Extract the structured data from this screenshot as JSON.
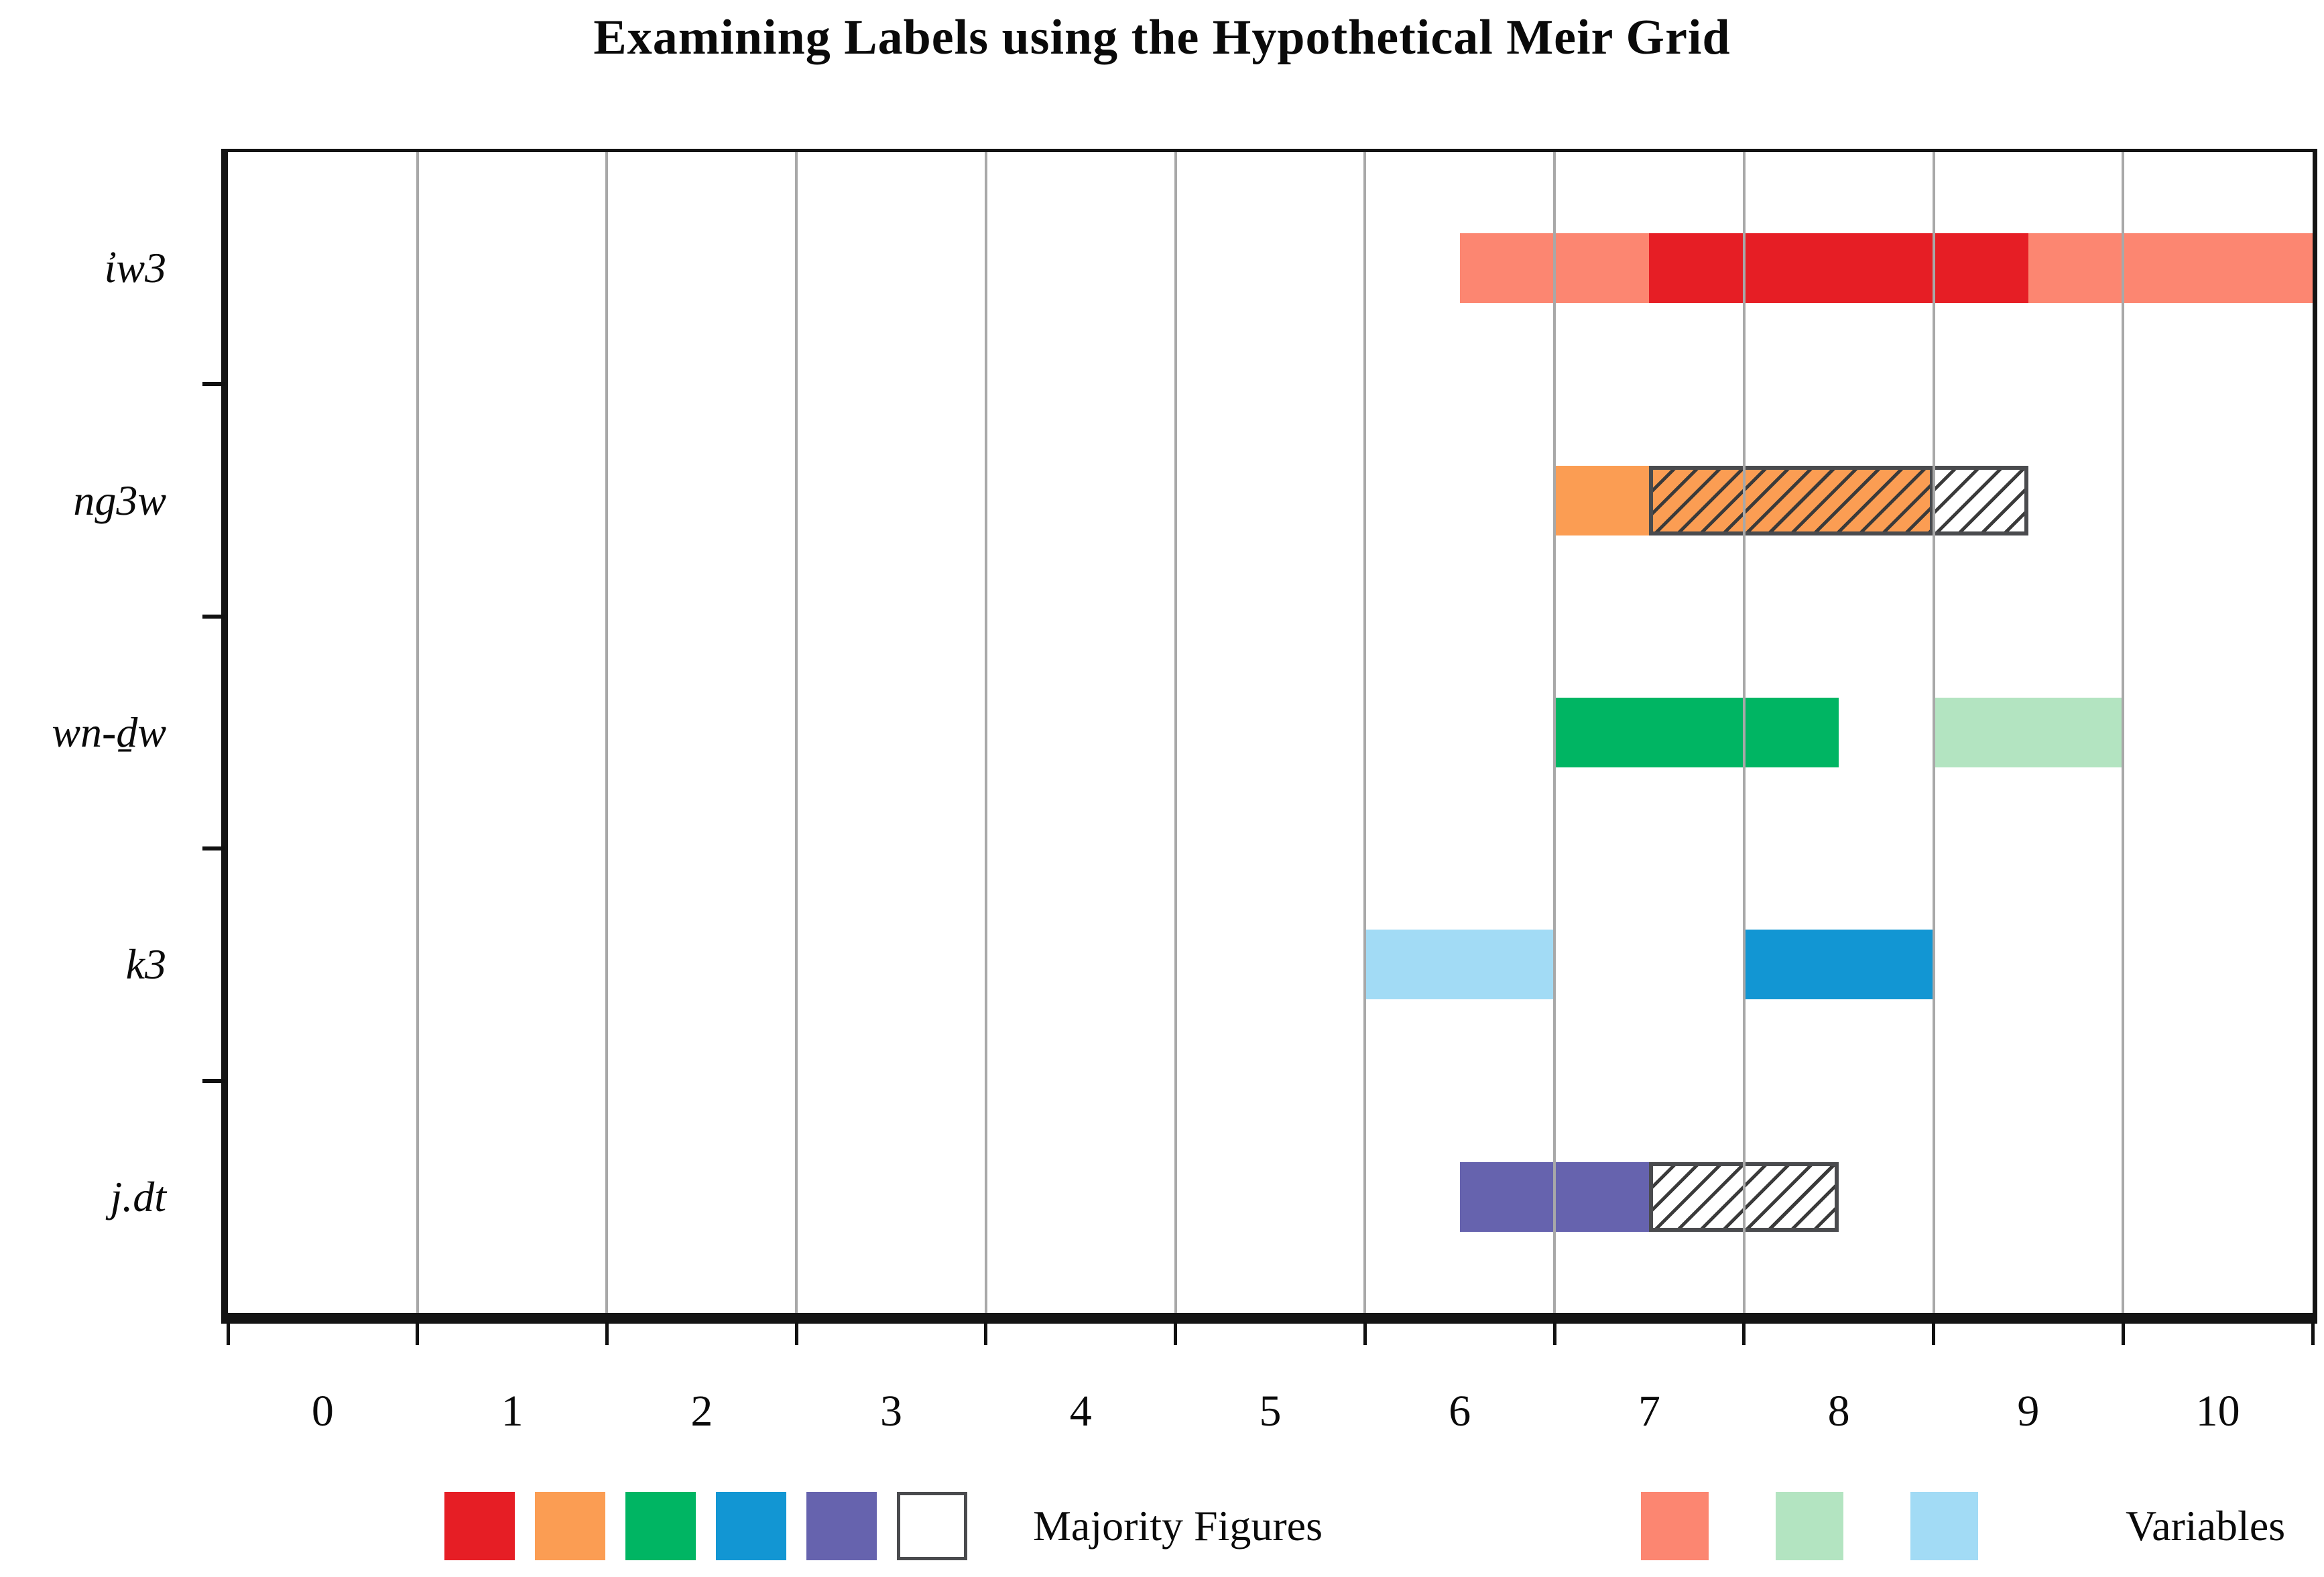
{
  "chart_data": {
    "type": "bar",
    "orientation": "horizontal",
    "title": "Examining Labels using the Hypothetical Meir Grid",
    "xlim": [
      -0.5,
      10.5
    ],
    "xticks": [
      "0",
      "1",
      "2",
      "3",
      "4",
      "5",
      "6",
      "7",
      "8",
      "9",
      "10"
    ],
    "xtick_values": [
      0,
      1,
      2,
      3,
      4,
      5,
      6,
      7,
      8,
      9,
      10
    ],
    "gridlines": [
      0.5,
      1.5,
      2.5,
      3.5,
      4.5,
      5.5,
      6.5,
      7.5,
      8.5,
      9.5
    ],
    "grid_on": true,
    "categories": [
      "ἰw3",
      "ng3w",
      "wn-ḏw",
      "k3",
      "j.dt"
    ],
    "colors": {
      "red": "#E61E25",
      "orange": "#FB9D53",
      "green": "#00B563",
      "blue": "#1296D3",
      "purple": "#6663AE",
      "salmon": "#FC8671",
      "light_green": "#B3E4C1",
      "light_blue": "#A2DBF5",
      "white": "#FFFFFF",
      "gridline": "#A8A8A8",
      "axis": "#141414",
      "hatch_line": "#3A3A3A",
      "hatch_border": "#4A4B4E"
    },
    "bars": [
      {
        "category": "ἰw3",
        "segments": [
          {
            "from": 6.0,
            "to": 10.5,
            "fill": "salmon",
            "hatched": false,
            "outlined": false
          },
          {
            "from": 7.0,
            "to": 9.0,
            "fill": "red",
            "hatched": false,
            "outlined": false
          }
        ]
      },
      {
        "category": "ng3w",
        "segments": [
          {
            "from": 6.5,
            "to": 7.0,
            "fill": "orange",
            "hatched": false,
            "outlined": false
          },
          {
            "from": 7.0,
            "to": 8.5,
            "fill": "orange",
            "hatched": true,
            "outlined": true
          },
          {
            "from": 8.5,
            "to": 9.0,
            "fill": "white",
            "hatched": true,
            "outlined": true
          }
        ]
      },
      {
        "category": "wn-ḏw",
        "segments": [
          {
            "from": 6.5,
            "to": 8.0,
            "fill": "green",
            "hatched": false,
            "outlined": false
          },
          {
            "from": 8.5,
            "to": 9.5,
            "fill": "light_green",
            "hatched": false,
            "outlined": false
          }
        ]
      },
      {
        "category": "k3",
        "segments": [
          {
            "from": 5.5,
            "to": 6.5,
            "fill": "light_blue",
            "hatched": false,
            "outlined": false
          },
          {
            "from": 7.5,
            "to": 8.5,
            "fill": "blue",
            "hatched": false,
            "outlined": false
          }
        ]
      },
      {
        "category": "j.dt",
        "segments": [
          {
            "from": 6.0,
            "to": 7.0,
            "fill": "purple",
            "hatched": false,
            "outlined": false
          },
          {
            "from": 7.0,
            "to": 8.0,
            "fill": "white",
            "hatched": true,
            "outlined": true
          }
        ]
      }
    ],
    "legend": [
      {
        "label": "Majority Figures",
        "swatches": [
          "red",
          "orange",
          "green",
          "blue",
          "purple",
          "hatch"
        ]
      },
      {
        "label": "Variables",
        "swatches": [
          "salmon",
          "light_green",
          "light_blue"
        ]
      }
    ],
    "legend_position": "bottom"
  }
}
